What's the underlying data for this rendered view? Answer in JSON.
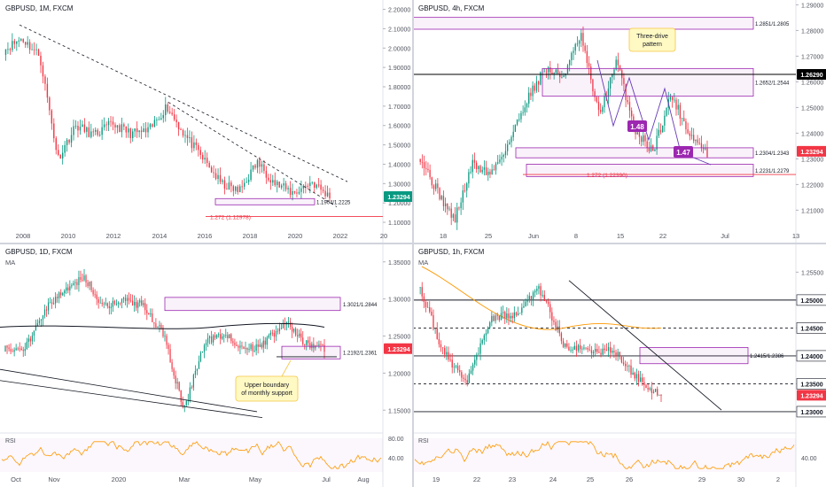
{
  "chart_data": [
    {
      "type": "candlestick",
      "title": "GBPUSD, 1M, FXCM",
      "x_ticks": [
        "2008",
        "2010",
        "2012",
        "2014",
        "2016",
        "2018",
        "2020",
        "2022",
        "20"
      ],
      "y_ticks": [
        "2.20000",
        "2.10000",
        "2.00000",
        "1.90000",
        "1.80000",
        "1.70000",
        "1.60000",
        "1.50000",
        "1.40000",
        "1.30000",
        "1.20000",
        "1.10000"
      ],
      "ylim": [
        1.05,
        2.23
      ],
      "price_tag": {
        "label": "1.23294",
        "value": 1.23294,
        "color": "#089981"
      },
      "zones": [
        {
          "label": "1.1904/1.2225",
          "from": 1.1904,
          "to": 1.2225
        }
      ],
      "lines": [
        {
          "label": "1.272 (1.12978)",
          "value": 1.12978,
          "color": "#f23645"
        }
      ],
      "trendlines": [
        "dashed resistance from 2007 high",
        "dashed resistance from 2014 high"
      ]
    },
    {
      "type": "candlestick",
      "title": "GBPUSD, 4h, FXCM",
      "x_ticks": [
        "18",
        "25",
        "Jun",
        "8",
        "15",
        "22",
        "Jul",
        "13"
      ],
      "y_ticks": [
        "1.29000",
        "1.28000",
        "1.27000",
        "1.26000",
        "1.25000",
        "1.24000",
        "1.23000",
        "1.22000",
        "1.21000"
      ],
      "ylim": [
        1.2015,
        1.2905
      ],
      "price_tag": {
        "label": "1.23294",
        "value": 1.23294,
        "color": "#f23645"
      },
      "level_tag": {
        "label": "1.26290",
        "value": 1.2629,
        "color": "#000000"
      },
      "zones": [
        {
          "label": "1.2851/1.2805",
          "from": 1.2805,
          "to": 1.2851
        },
        {
          "label": "1.2652/1.2544",
          "from": 1.2544,
          "to": 1.2652
        },
        {
          "label": "1.2304/1.2343",
          "from": 1.2304,
          "to": 1.2343
        },
        {
          "label": "1.2231/1.2279",
          "from": 1.2231,
          "to": 1.2279
        }
      ],
      "lines": [
        {
          "label": "1.272 (1.22390)",
          "value": 1.2239,
          "color": "#f23645"
        }
      ],
      "annotations": [
        "Three-drive pattern",
        "1.48",
        "1.47"
      ]
    },
    {
      "type": "candlestick",
      "title": "GBPUSD, 1D, FXCM",
      "indicator": "MA",
      "x_ticks": [
        "Oct",
        "Nov",
        "2020",
        "Mar",
        "May",
        "Jul",
        "Aug"
      ],
      "y_ticks": [
        "1.35000",
        "1.30000",
        "1.25000",
        "1.20000",
        "1.15000"
      ],
      "ylim": [
        1.13,
        1.37
      ],
      "price_tag": {
        "label": "1.23294",
        "value": 1.23294,
        "color": "#f23645"
      },
      "zones": [
        {
          "label": "1.3021/1.2844",
          "from": 1.2844,
          "to": 1.3021
        },
        {
          "label": "1.2192/1.2361",
          "from": 1.2192,
          "to": 1.2361
        }
      ],
      "annotations": [
        "Upper boundary of monthly support"
      ],
      "rsi": {
        "label": "RSI",
        "y_ticks": [
          "80.00",
          "40.00"
        ]
      }
    },
    {
      "type": "candlestick",
      "title": "GBPUSD, 1h, FXCM",
      "indicator": "MA",
      "x_ticks": [
        "19",
        "22",
        "23",
        "24",
        "25",
        "26",
        "29",
        "30",
        "2"
      ],
      "y_ticks": [
        "1.25500",
        "1.25000",
        "1.24500",
        "1.24000",
        "1.23500",
        "1.23000"
      ],
      "ylim": [
        1.2265,
        1.2595
      ],
      "price_tag": {
        "label": "1.23294",
        "value": 1.23294,
        "color": "#f23645"
      },
      "levels": [
        {
          "label": "1.25000",
          "value": 1.25,
          "style": "solid"
        },
        {
          "label": "1.24500",
          "value": 1.245,
          "style": "dashed"
        },
        {
          "label": "1.24000",
          "value": 1.24,
          "style": "solid"
        },
        {
          "label": "1.23500",
          "value": 1.235,
          "style": "dashed"
        },
        {
          "label": "1.23000",
          "value": 1.23,
          "style": "solid"
        }
      ],
      "zones": [
        {
          "label": "1.2415/1.2386",
          "from": 1.2386,
          "to": 1.2415
        }
      ],
      "rsi": {
        "label": "RSI",
        "y_ticks": [
          "40.00"
        ]
      }
    }
  ]
}
